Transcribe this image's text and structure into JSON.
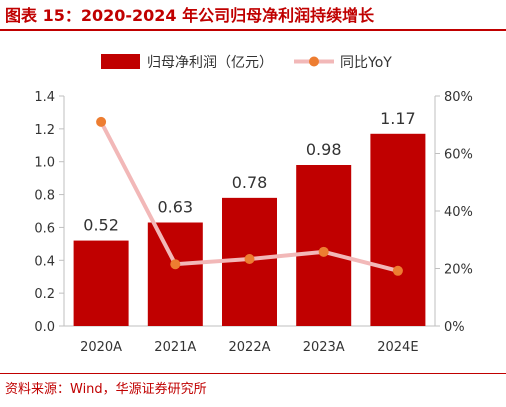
{
  "title": "图表 15：2020-2024 年公司归母净利润持续增长",
  "source": "资料来源：Wind，华源证券研究所",
  "chart_data": {
    "type": "bar+line",
    "categories": [
      "2020A",
      "2021A",
      "2022A",
      "2023A",
      "2024E"
    ],
    "series": [
      {
        "name": "归母净利润（亿元）",
        "type": "bar",
        "axis": "left",
        "values": [
          0.52,
          0.63,
          0.78,
          0.98,
          1.17
        ],
        "labels": [
          "0.52",
          "0.63",
          "0.78",
          "0.98",
          "1.17"
        ],
        "color": "#c00000"
      },
      {
        "name": "同比YoY",
        "type": "line",
        "axis": "right",
        "values": [
          71,
          21.5,
          23.3,
          25.8,
          19.2
        ],
        "line_color": "#f2b8b8",
        "marker_color": "#ed7d31"
      }
    ],
    "left_axis": {
      "min": 0,
      "max": 1.4,
      "ticks": [
        "0.0",
        "0.2",
        "0.4",
        "0.6",
        "0.8",
        "1.0",
        "1.2",
        "1.4"
      ]
    },
    "right_axis": {
      "min": 0,
      "max": 80,
      "ticks": [
        "0%",
        "20%",
        "40%",
        "60%",
        "80%"
      ]
    },
    "legend_position": "top",
    "grid": false
  }
}
